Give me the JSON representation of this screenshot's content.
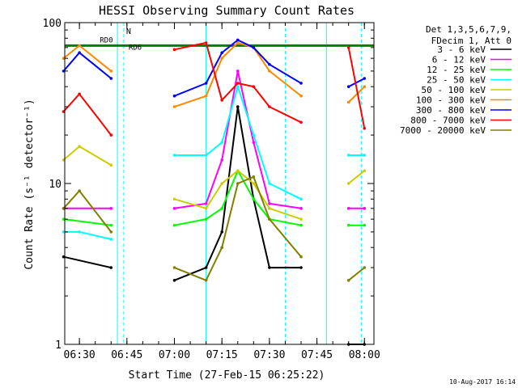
{
  "chart_data": {
    "type": "line",
    "title": "HESSI Observing Summary Count Rates",
    "xlabel": "Start Time (27-Feb-15 06:25:22)",
    "ylabel": "Count Rate (s⁻¹ detector⁻¹)",
    "xlim": [
      "06:25:22",
      "08:03:00"
    ],
    "ylim": [
      1,
      100
    ],
    "yscale": "log",
    "x_ticks": [
      "06:30",
      "06:45",
      "07:00",
      "07:15",
      "07:30",
      "07:45",
      "08:00"
    ],
    "y_ticks": [
      "1",
      "10",
      "100"
    ],
    "legend_title": [
      "Det 1,3,5,6,7,9,",
      "FDecim 1, Att 0"
    ],
    "legend_position": "right",
    "footer_date": "10-Aug-2017 16:14",
    "annotations": [
      "N",
      "RD0",
      "RD6"
    ],
    "attenuator_bar": {
      "label": "RD0",
      "value": 72,
      "color": "#008000"
    },
    "series": [
      {
        "name": "3 - 6 keV",
        "color": "#000000",
        "x": [
          "06:25",
          "06:40",
          "06:45",
          "07:00",
          "07:10",
          "07:15",
          "07:20",
          "07:25",
          "07:30",
          "07:40",
          "07:45",
          "07:55",
          "08:00"
        ],
        "y": [
          3.5,
          3.0,
          null,
          2.5,
          3.0,
          5.0,
          30,
          8.0,
          3.0,
          3.0,
          null,
          1.0,
          1.0
        ]
      },
      {
        "name": "6 - 12 keV",
        "color": "#ff00ff",
        "x": [
          "06:25",
          "06:40",
          "06:45",
          "07:00",
          "07:10",
          "07:15",
          "07:20",
          "07:25",
          "07:30",
          "07:40",
          "07:45",
          "07:55",
          "08:00"
        ],
        "y": [
          7.0,
          7.0,
          null,
          7.0,
          7.5,
          14,
          50,
          18,
          7.5,
          7.0,
          null,
          7.0,
          7.0
        ]
      },
      {
        "name": "12 - 25 keV",
        "color": "#00ff00",
        "x": [
          "06:25",
          "06:40",
          "06:45",
          "07:00",
          "07:10",
          "07:15",
          "07:20",
          "07:25",
          "07:30",
          "07:40",
          "07:45",
          "07:55",
          "08:00"
        ],
        "y": [
          6.0,
          5.5,
          null,
          5.5,
          6.0,
          7.0,
          12,
          8.0,
          6.0,
          5.5,
          null,
          5.5,
          5.5
        ]
      },
      {
        "name": "25 - 50 keV",
        "color": "#00ffff",
        "x": [
          "06:25",
          "06:30",
          "06:40",
          "06:45",
          "07:00",
          "07:10",
          "07:15",
          "07:20",
          "07:25",
          "07:30",
          "07:40",
          "07:45",
          "07:55",
          "08:00"
        ],
        "y": [
          5.0,
          5.0,
          4.5,
          null,
          15,
          15,
          18,
          40,
          20,
          10,
          8.0,
          null,
          15,
          15
        ]
      },
      {
        "name": "50 - 100 keV",
        "color": "#cccc00",
        "x": [
          "06:25",
          "06:30",
          "06:40",
          "06:45",
          "07:00",
          "07:10",
          "07:15",
          "07:20",
          "07:25",
          "07:30",
          "07:40",
          "07:45",
          "07:55",
          "08:00"
        ],
        "y": [
          14,
          17,
          13,
          null,
          8.0,
          7.0,
          10,
          12,
          10,
          7.0,
          6.0,
          null,
          10,
          12
        ]
      },
      {
        "name": "100 - 300 keV",
        "color": "#ff8800",
        "x": [
          "06:25",
          "06:30",
          "06:40",
          "06:45",
          "07:00",
          "07:10",
          "07:15",
          "07:20",
          "07:25",
          "07:30",
          "07:40",
          "07:45",
          "07:55",
          "08:00"
        ],
        "y": [
          60,
          72,
          50,
          null,
          30,
          35,
          60,
          75,
          70,
          50,
          35,
          null,
          32,
          40
        ]
      },
      {
        "name": "300 - 800 keV",
        "color": "#0000ff",
        "x": [
          "06:25",
          "06:30",
          "06:40",
          "06:45",
          "07:00",
          "07:10",
          "07:15",
          "07:20",
          "07:25",
          "07:30",
          "07:40",
          "07:45",
          "07:55",
          "08:00"
        ],
        "y": [
          50,
          65,
          45,
          null,
          35,
          42,
          65,
          78,
          70,
          55,
          42,
          null,
          40,
          45
        ]
      },
      {
        "name": "800 - 7000 keV",
        "color": "#ff0000",
        "x": [
          "06:25",
          "06:30",
          "06:40",
          "06:45",
          "07:00",
          "07:10",
          "07:15",
          "07:20",
          "07:25",
          "07:30",
          "07:40",
          "07:45",
          "07:55",
          "08:00"
        ],
        "y": [
          28,
          36,
          20,
          null,
          68,
          75,
          33,
          42,
          40,
          30,
          24,
          null,
          70,
          22
        ]
      },
      {
        "name": "7000 - 20000 keV",
        "color": "#808000",
        "x": [
          "06:25",
          "06:30",
          "06:40",
          "06:45",
          "07:00",
          "07:10",
          "07:15",
          "07:20",
          "07:25",
          "07:30",
          "07:40",
          "07:45",
          "07:55",
          "08:00"
        ],
        "y": [
          7.0,
          9.0,
          5.0,
          null,
          3.0,
          2.5,
          4.0,
          10,
          11,
          6.0,
          3.5,
          null,
          2.5,
          3.0
        ]
      }
    ],
    "band_boundaries": [
      "06:42",
      "06:44",
      "07:10",
      "07:35",
      "07:48",
      "07:59"
    ]
  }
}
